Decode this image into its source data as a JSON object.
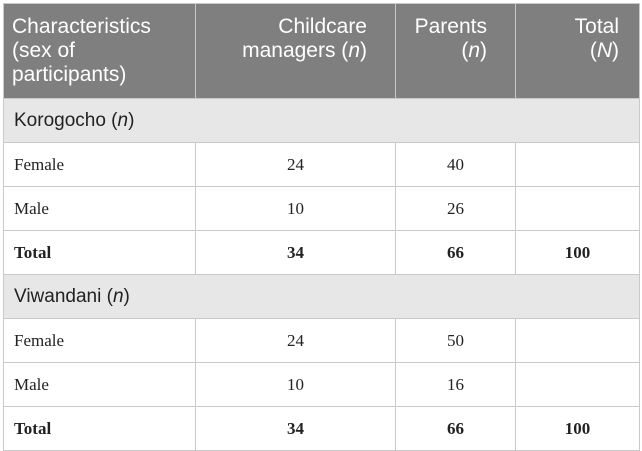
{
  "table": {
    "headers": [
      {
        "line1": "Characteristics",
        "line2": "(sex of",
        "line3": "participants)"
      },
      {
        "line1": "Childcare",
        "line2_pre": "managers (",
        "line2_var": "n",
        "line2_post": ")"
      },
      {
        "line1": "Parents",
        "line2_pre": "(",
        "line2_var": "n",
        "line2_post": ")"
      },
      {
        "line1": "Total",
        "line2_pre": "(",
        "line2_var": "N",
        "line2_post": ")"
      }
    ],
    "sections": [
      {
        "name": "Korogocho",
        "name_var": "n",
        "rows": [
          {
            "label": "Female",
            "managers": "24",
            "parents": "40",
            "total": ""
          },
          {
            "label": "Male",
            "managers": "10",
            "parents": "26",
            "total": ""
          },
          {
            "label": "Total",
            "managers": "34",
            "parents": "66",
            "total": "100"
          }
        ]
      },
      {
        "name": "Viwandani",
        "name_var": "n",
        "rows": [
          {
            "label": "Female",
            "managers": "24",
            "parents": "50",
            "total": ""
          },
          {
            "label": "Male",
            "managers": "10",
            "parents": "16",
            "total": ""
          },
          {
            "label": "Total",
            "managers": "34",
            "parents": "66",
            "total": "100"
          }
        ]
      }
    ]
  }
}
